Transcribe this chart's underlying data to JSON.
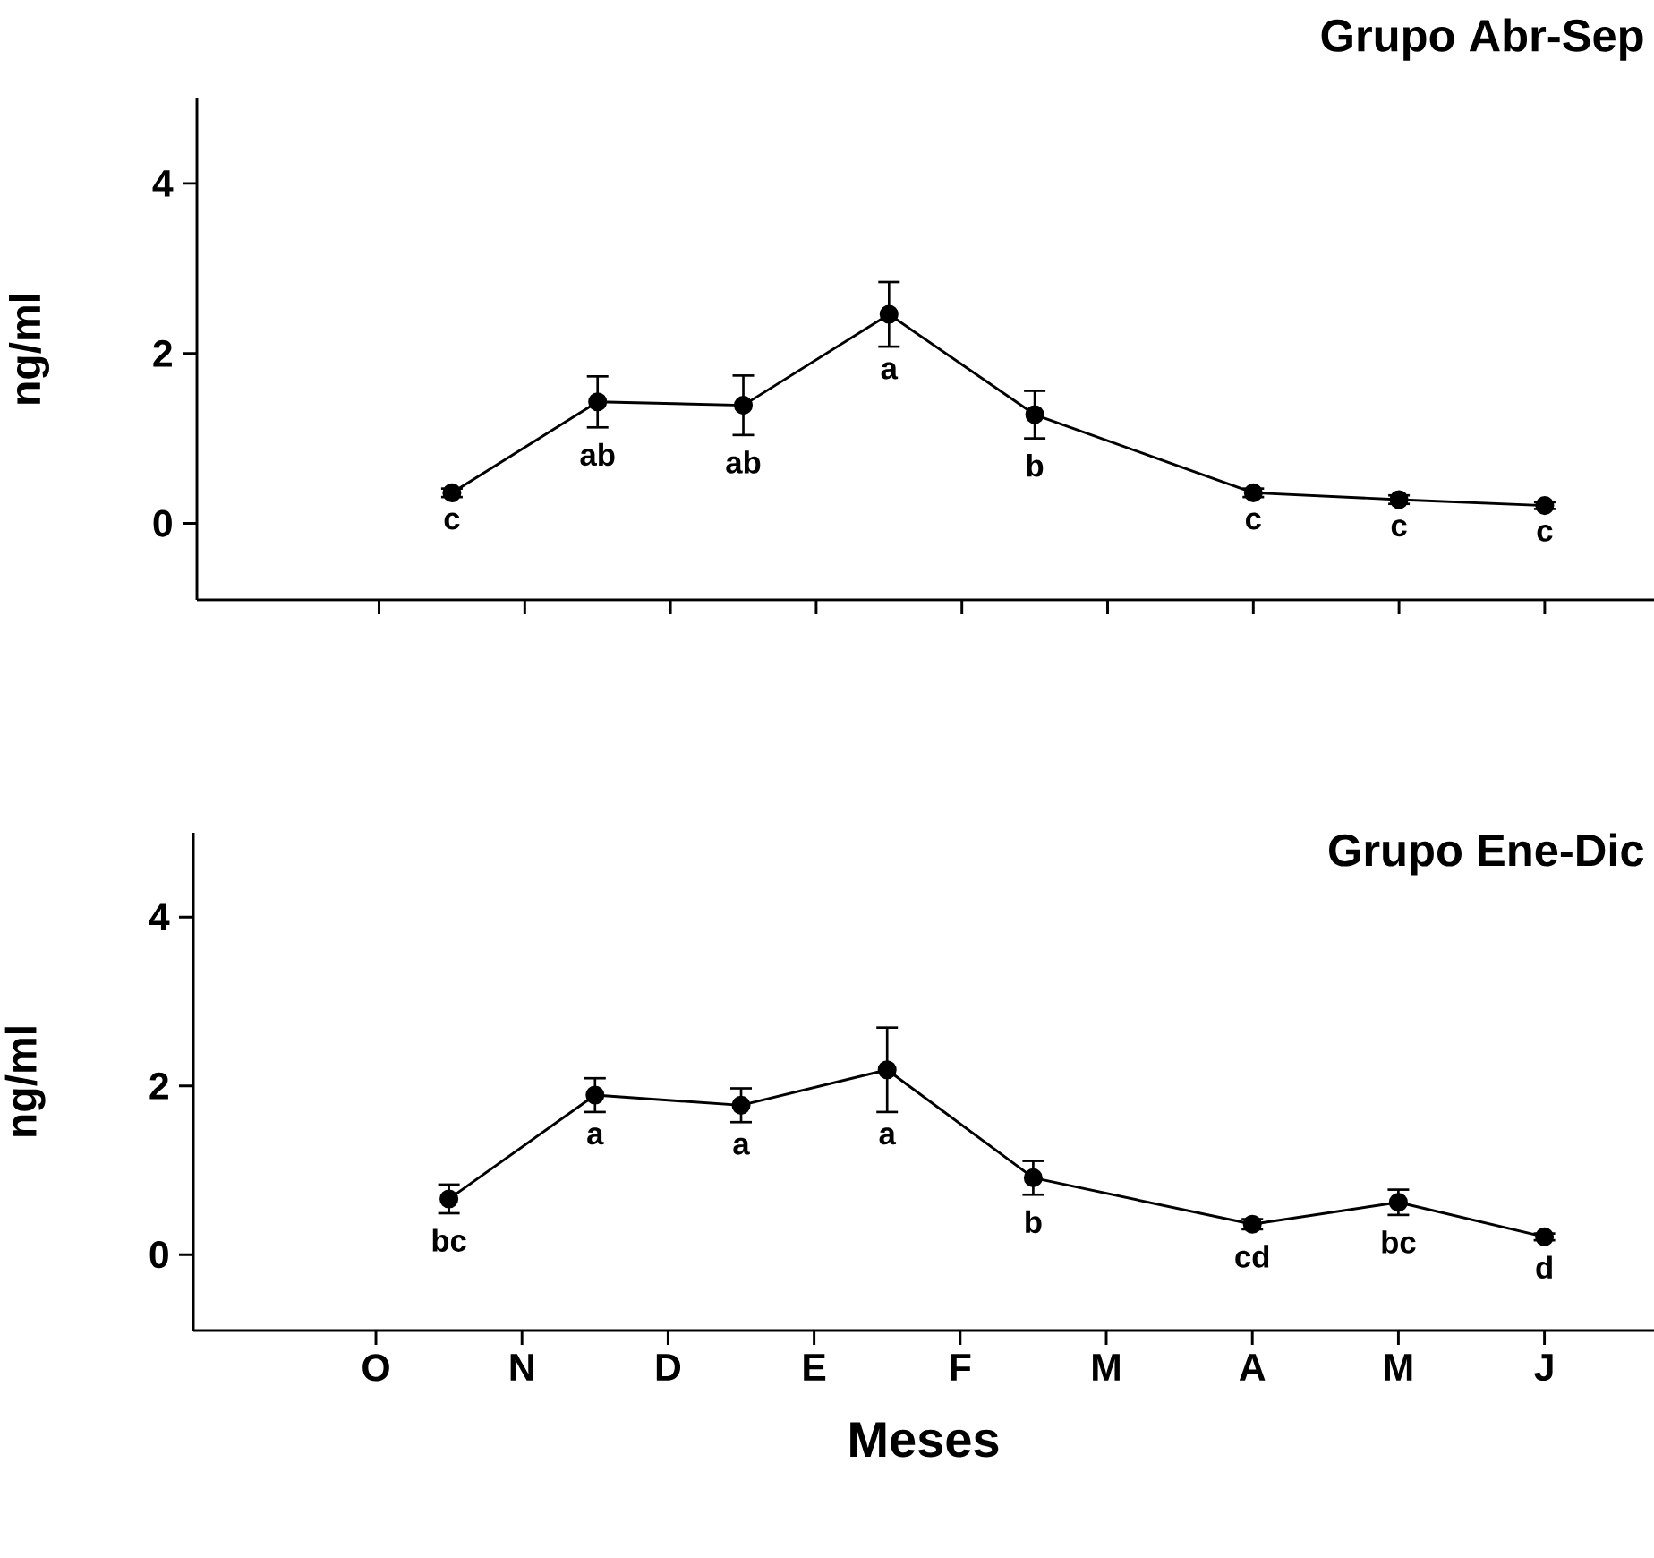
{
  "chart_data": [
    {
      "type": "line",
      "title": "Grupo Abr-Sep",
      "ylabel": "ng/ml",
      "categories": [
        null,
        null,
        null,
        null,
        null,
        null,
        null,
        null,
        null,
        null,
        null,
        null,
        null,
        null,
        null,
        null,
        null,
        null,
        null,
        null
      ],
      "series": [
        {
          "color": "#000000",
          "values": [
            null,
            null,
            null,
            0.36,
            null,
            1.43,
            null,
            1.39,
            null,
            2.46,
            null,
            1.28,
            null,
            null,
            0.36,
            null,
            0.28,
            null,
            0.21,
            null
          ],
          "errors": [
            null,
            null,
            null,
            0.05,
            null,
            0.3,
            null,
            0.35,
            null,
            0.38,
            null,
            0.28,
            null,
            null,
            0.05,
            null,
            0.05,
            null,
            0.04,
            null
          ],
          "value_labels": [
            null,
            null,
            null,
            "c",
            null,
            "ab",
            null,
            "ab",
            null,
            "a",
            null,
            "b",
            null,
            null,
            "c",
            null,
            "c",
            null,
            "c",
            null
          ]
        }
      ],
      "ylim": [
        -0.9,
        5
      ],
      "yticks": [
        0,
        2,
        4
      ],
      "tick_labels": "y",
      "marker": "circle",
      "line_style": "solid"
    },
    {
      "type": "line",
      "title": "Grupo Ene-Dic",
      "ylabel": "ng/ml",
      "xlabel": "Meses",
      "categories": [
        null,
        null,
        "O",
        null,
        "N",
        null,
        "D",
        null,
        "E",
        null,
        "F",
        null,
        "M",
        null,
        "A",
        null,
        "M",
        null,
        "J",
        null
      ],
      "series": [
        {
          "color": "#000000",
          "values": [
            null,
            null,
            null,
            0.66,
            null,
            1.89,
            null,
            1.77,
            null,
            2.19,
            null,
            0.91,
            null,
            null,
            0.36,
            null,
            0.62,
            null,
            0.21,
            null
          ],
          "errors": [
            null,
            null,
            null,
            0.17,
            null,
            0.2,
            null,
            0.2,
            null,
            0.5,
            null,
            0.2,
            null,
            null,
            0.06,
            null,
            0.15,
            null,
            0.04,
            null
          ],
          "value_labels": [
            null,
            null,
            null,
            "bc",
            null,
            "a",
            null,
            "a",
            null,
            "a",
            null,
            "b",
            null,
            null,
            "cd",
            null,
            "bc",
            null,
            "d",
            null
          ]
        }
      ],
      "ylim": [
        -0.9,
        5
      ],
      "yticks": [
        0,
        2,
        4
      ],
      "marker": "circle",
      "line_style": "solid"
    }
  ]
}
